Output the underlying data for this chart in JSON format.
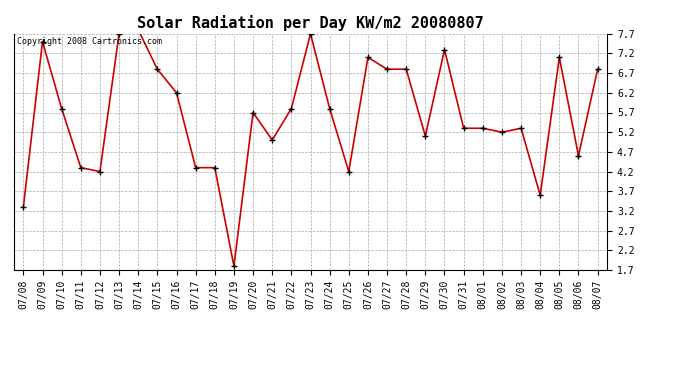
{
  "title": "Solar Radiation per Day KW/m2 20080807",
  "copyright_text": "Copyright 2008 Cartronics.com",
  "dates": [
    "07/08",
    "07/09",
    "07/10",
    "07/11",
    "07/12",
    "07/13",
    "07/14",
    "07/15",
    "07/16",
    "07/17",
    "07/18",
    "07/19",
    "07/20",
    "07/21",
    "07/22",
    "07/23",
    "07/24",
    "07/25",
    "07/26",
    "07/27",
    "07/28",
    "07/29",
    "07/30",
    "07/31",
    "08/01",
    "08/02",
    "08/03",
    "08/04",
    "08/05",
    "08/06",
    "08/07"
  ],
  "values": [
    3.3,
    7.5,
    5.8,
    4.3,
    4.2,
    7.7,
    7.8,
    6.8,
    6.2,
    4.3,
    4.3,
    1.8,
    5.7,
    5.0,
    5.8,
    7.7,
    5.8,
    4.2,
    7.1,
    6.8,
    6.8,
    5.1,
    7.3,
    5.3,
    5.3,
    5.2,
    5.3,
    3.6,
    7.1,
    4.6,
    6.8
  ],
  "line_color": "#cc0000",
  "marker_color": "#000000",
  "bg_color": "#ffffff",
  "grid_color": "#aaaaaa",
  "ylim_min": 1.7,
  "ylim_max": 7.7,
  "yticks": [
    1.7,
    2.2,
    2.7,
    3.2,
    3.7,
    4.2,
    4.7,
    5.2,
    5.7,
    6.2,
    6.7,
    7.2,
    7.7
  ],
  "title_fontsize": 11,
  "copyright_fontsize": 6,
  "tick_fontsize": 7
}
